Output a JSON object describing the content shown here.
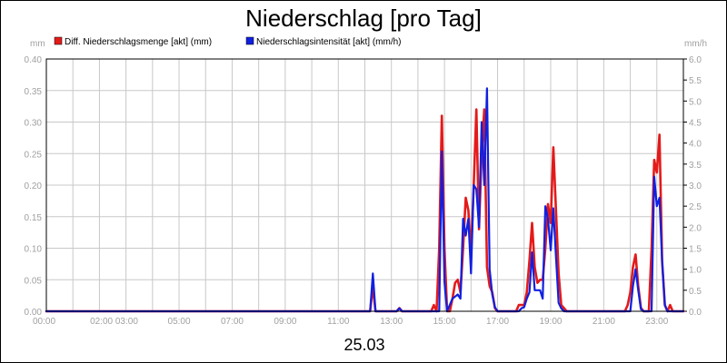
{
  "chart_data": {
    "type": "line",
    "title": "Niederschlag [pro Tag]",
    "date_label": "25.03",
    "y_left_unit": "mm",
    "y_right_unit": "mm/h",
    "y_left_range": [
      0,
      0.4
    ],
    "y_right_range": [
      0,
      6.0
    ],
    "y_left_ticks": [
      "0.00",
      "0.05",
      "0.10",
      "0.15",
      "0.20",
      "0.25",
      "0.30",
      "0.35",
      "0.40"
    ],
    "y_right_ticks": [
      "0.0",
      "0.5",
      "1.0",
      "1.5",
      "2.0",
      "2.5",
      "3.0",
      "3.5",
      "4.0",
      "4.5",
      "5.0",
      "5.5",
      "6.0"
    ],
    "x_range_hours": [
      0,
      24
    ],
    "x_ticks": [
      {
        "hour": 0,
        "label": "00:00"
      },
      {
        "hour": 2.55,
        "label": "02:00 03:00"
      },
      {
        "hour": 5,
        "label": "05:00"
      },
      {
        "hour": 7,
        "label": "07:00"
      },
      {
        "hour": 9,
        "label": "09:00"
      },
      {
        "hour": 11,
        "label": "11:00"
      },
      {
        "hour": 13,
        "label": "13:00"
      },
      {
        "hour": 15,
        "label": "15:00"
      },
      {
        "hour": 17,
        "label": "17:00"
      },
      {
        "hour": 19,
        "label": "19:00"
      },
      {
        "hour": 21,
        "label": "21:00"
      },
      {
        "hour": 23,
        "label": "23:00"
      }
    ],
    "grid": true,
    "legend_position": "top-left",
    "series": [
      {
        "name": "Diff. Niederschlagsmenge [akt] (mm)",
        "color": "#e41a1a",
        "axis": "left",
        "points": [
          [
            0,
            0
          ],
          [
            12.2,
            0
          ],
          [
            12.3,
            0.04
          ],
          [
            12.4,
            0
          ],
          [
            13.2,
            0
          ],
          [
            13.3,
            0.005
          ],
          [
            13.4,
            0
          ],
          [
            14.5,
            0
          ],
          [
            14.6,
            0.01
          ],
          [
            14.7,
            0
          ],
          [
            14.8,
            0.1
          ],
          [
            14.9,
            0.31
          ],
          [
            15.0,
            0.1
          ],
          [
            15.1,
            0
          ],
          [
            15.2,
            0
          ],
          [
            15.3,
            0.02
          ],
          [
            15.4,
            0.045
          ],
          [
            15.5,
            0.05
          ],
          [
            15.6,
            0.03
          ],
          [
            15.7,
            0.1
          ],
          [
            15.8,
            0.18
          ],
          [
            15.9,
            0.16
          ],
          [
            16.0,
            0.09
          ],
          [
            16.1,
            0.2
          ],
          [
            16.2,
            0.32
          ],
          [
            16.3,
            0.13
          ],
          [
            16.4,
            0.25
          ],
          [
            16.5,
            0.32
          ],
          [
            16.6,
            0.07
          ],
          [
            16.7,
            0.04
          ],
          [
            16.8,
            0.03
          ],
          [
            16.9,
            0.005
          ],
          [
            17.0,
            0
          ],
          [
            17.7,
            0
          ],
          [
            17.8,
            0.01
          ],
          [
            18.0,
            0.01
          ],
          [
            18.1,
            0.03
          ],
          [
            18.2,
            0.08
          ],
          [
            18.3,
            0.14
          ],
          [
            18.4,
            0.07
          ],
          [
            18.5,
            0.045
          ],
          [
            18.6,
            0.05
          ],
          [
            18.7,
            0.05
          ],
          [
            18.8,
            0.1
          ],
          [
            18.9,
            0.17
          ],
          [
            19.0,
            0.14
          ],
          [
            19.1,
            0.26
          ],
          [
            19.2,
            0.16
          ],
          [
            19.3,
            0.06
          ],
          [
            19.4,
            0.01
          ],
          [
            19.5,
            0.005
          ],
          [
            19.6,
            0
          ],
          [
            21.8,
            0
          ],
          [
            21.9,
            0.01
          ],
          [
            22.0,
            0.03
          ],
          [
            22.1,
            0.07
          ],
          [
            22.2,
            0.09
          ],
          [
            22.3,
            0.04
          ],
          [
            22.4,
            0.005
          ],
          [
            22.5,
            0
          ],
          [
            22.7,
            0
          ],
          [
            22.8,
            0.1
          ],
          [
            22.9,
            0.24
          ],
          [
            23.0,
            0.22
          ],
          [
            23.1,
            0.28
          ],
          [
            23.2,
            0.08
          ],
          [
            23.3,
            0.01
          ],
          [
            23.4,
            0
          ],
          [
            23.5,
            0.01
          ],
          [
            23.6,
            0
          ],
          [
            24,
            0
          ]
        ]
      },
      {
        "name": "Niederschlagsintensität [akt] (mm/h)",
        "color": "#1020e0",
        "axis": "right",
        "points": [
          [
            0,
            0
          ],
          [
            12.2,
            0
          ],
          [
            12.3,
            0.9
          ],
          [
            12.4,
            0
          ],
          [
            13.2,
            0
          ],
          [
            13.3,
            0.07
          ],
          [
            13.4,
            0
          ],
          [
            14.8,
            0
          ],
          [
            14.9,
            3.8
          ],
          [
            15.0,
            0.7
          ],
          [
            15.1,
            0
          ],
          [
            15.3,
            0.3
          ],
          [
            15.4,
            0.35
          ],
          [
            15.5,
            0.4
          ],
          [
            15.6,
            0.3
          ],
          [
            15.7,
            2.2
          ],
          [
            15.8,
            1.8
          ],
          [
            15.9,
            2.2
          ],
          [
            16.0,
            0.9
          ],
          [
            16.1,
            3.0
          ],
          [
            16.2,
            2.9
          ],
          [
            16.3,
            2.0
          ],
          [
            16.4,
            4.5
          ],
          [
            16.5,
            3.0
          ],
          [
            16.6,
            5.3
          ],
          [
            16.7,
            1.0
          ],
          [
            16.8,
            0.4
          ],
          [
            16.9,
            0.1
          ],
          [
            17.0,
            0
          ],
          [
            17.8,
            0
          ],
          [
            17.9,
            0.07
          ],
          [
            18.0,
            0.1
          ],
          [
            18.1,
            0.3
          ],
          [
            18.2,
            0.45
          ],
          [
            18.3,
            1.4
          ],
          [
            18.4,
            0.5
          ],
          [
            18.5,
            0.5
          ],
          [
            18.6,
            0.5
          ],
          [
            18.7,
            0.3
          ],
          [
            18.8,
            2.5
          ],
          [
            18.9,
            2.2
          ],
          [
            19.0,
            1.45
          ],
          [
            19.1,
            2.45
          ],
          [
            19.2,
            1.3
          ],
          [
            19.3,
            0.2
          ],
          [
            19.4,
            0.07
          ],
          [
            19.5,
            0
          ],
          [
            22.0,
            0
          ],
          [
            22.1,
            0.6
          ],
          [
            22.2,
            1.0
          ],
          [
            22.3,
            0.5
          ],
          [
            22.4,
            0.05
          ],
          [
            22.5,
            0
          ],
          [
            22.8,
            0
          ],
          [
            22.9,
            3.2
          ],
          [
            23.0,
            2.5
          ],
          [
            23.1,
            2.7
          ],
          [
            23.2,
            1.2
          ],
          [
            23.3,
            0.15
          ],
          [
            23.4,
            0
          ],
          [
            24,
            0
          ]
        ]
      }
    ]
  }
}
